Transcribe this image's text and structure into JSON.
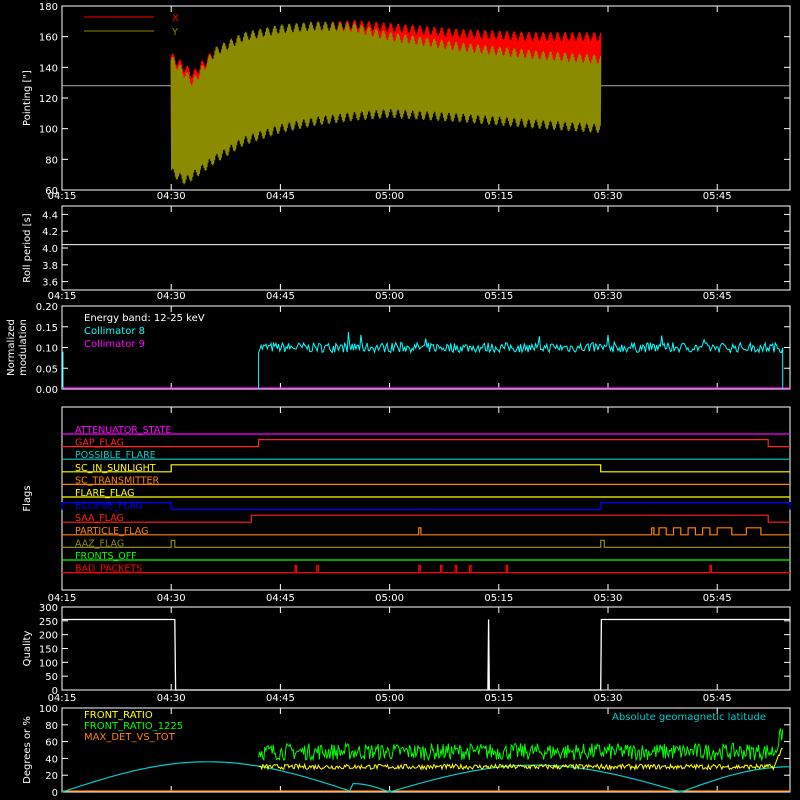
{
  "x_ticks": [
    "04:15",
    "04:30",
    "04:45",
    "05:00",
    "05:15",
    "05:30",
    "05:45"
  ],
  "chart_data": [
    {
      "type": "line",
      "panel": "pointing",
      "ylabel": "Pointing [\"]",
      "ylim": [
        60,
        180
      ],
      "yticks": [
        "60",
        "80",
        "100",
        "120",
        "140",
        "160",
        "180"
      ],
      "xlim": [
        "04:15",
        "05:55"
      ],
      "legend_position": "top-left",
      "reference_line": 128,
      "series": [
        {
          "name": "X",
          "color": "#ff0000",
          "x_start": "04:30",
          "x_end": "05:29",
          "upper_envelope": [
            [
              0,
              147
            ],
            [
              3,
              135
            ],
            [
              6,
              150
            ],
            [
              10,
              158
            ],
            [
              15,
              163
            ],
            [
              20,
              166
            ],
            [
              25,
              168
            ],
            [
              30,
              166
            ],
            [
              40,
              162
            ],
            [
              50,
              160
            ],
            [
              59,
              160
            ]
          ],
          "lower_envelope": [
            [
              0,
              85
            ],
            [
              3,
              78
            ],
            [
              6,
              98
            ],
            [
              10,
              108
            ],
            [
              15,
              116
            ],
            [
              20,
              120
            ],
            [
              25,
              124
            ],
            [
              30,
              130
            ],
            [
              40,
              132
            ],
            [
              50,
              135
            ],
            [
              59,
              138
            ]
          ]
        },
        {
          "name": "Y",
          "color": "#8b8b00",
          "x_start": "04:30",
          "x_end": "05:29",
          "upper_envelope": [
            [
              0,
              145
            ],
            [
              3,
              130
            ],
            [
              6,
              150
            ],
            [
              10,
              160
            ],
            [
              15,
              165
            ],
            [
              20,
              167
            ],
            [
              25,
              166
            ],
            [
              30,
              160
            ],
            [
              40,
              153
            ],
            [
              50,
              148
            ],
            [
              59,
              145
            ]
          ],
          "lower_envelope": [
            [
              0,
              72
            ],
            [
              2,
              66
            ],
            [
              6,
              80
            ],
            [
              10,
              92
            ],
            [
              15,
              100
            ],
            [
              20,
              105
            ],
            [
              25,
              108
            ],
            [
              30,
              110
            ],
            [
              40,
              107
            ],
            [
              50,
              103
            ],
            [
              59,
              100
            ]
          ]
        }
      ]
    },
    {
      "type": "line",
      "panel": "roll_period",
      "ylabel": "Roll period [s]",
      "ylim": [
        3.5,
        4.5
      ],
      "yticks": [
        "3.6",
        "3.8",
        "4.0",
        "4.2",
        "4.4"
      ],
      "series": [
        {
          "name": "",
          "color": "#ffffff",
          "constant": 4.04
        }
      ]
    },
    {
      "type": "line",
      "panel": "modulation",
      "ylabel": "Normalized modulation",
      "ylim": [
        0,
        0.2
      ],
      "yticks": [
        "0.00",
        "0.05",
        "0.10",
        "0.15",
        "0.20"
      ],
      "title": "Energy band: 12-25 keV",
      "series": [
        {
          "name": "Collimator 8",
          "color": "#00ffff",
          "x_start": "04:42",
          "x_end": "05:54",
          "mean": 0.1,
          "spread": 0.012
        },
        {
          "name": "Collimator 9",
          "color": "#ff00ff",
          "constant": 0.0
        }
      ]
    },
    {
      "type": "line",
      "panel": "flags",
      "ylabel": "Flags",
      "flags": [
        {
          "name": "ATTENUATOR_STATE",
          "color": "#ff00ff",
          "segments": []
        },
        {
          "name": "GAP_FLAG",
          "color": "#ff2020",
          "segments": [
            [
              "04:42",
              "05:52"
            ]
          ]
        },
        {
          "name": "POSSIBLE_FLARE",
          "color": "#00cccc",
          "segments": []
        },
        {
          "name": "SC_IN_SUNLIGHT",
          "color": "#ffff00",
          "segments": [
            [
              "04:30",
              "05:29"
            ]
          ]
        },
        {
          "name": "SC_TRANSMITTER",
          "color": "#ff8000",
          "segments": []
        },
        {
          "name": "FLARE_FLAG",
          "color": "#ffff00",
          "segments": []
        },
        {
          "name": "ECLIPSE_FLAG",
          "color": "#0000ff",
          "segments": [
            [
              "04:15",
              "04:30"
            ],
            [
              "05:29",
              "05:55"
            ]
          ]
        },
        {
          "name": "SAA_FLAG",
          "color": "#ff2020",
          "segments": [
            [
              "04:41",
              "05:52"
            ]
          ]
        },
        {
          "name": "PARTICLE_FLAG",
          "color": "#ff8000",
          "segments": [
            [
              "05:04",
              "05:04.3"
            ],
            [
              "05:36",
              "05:36.3"
            ],
            [
              "05:37",
              "05:38"
            ],
            [
              "05:39",
              "05:40"
            ],
            [
              "05:41",
              "05:42"
            ],
            [
              "05:43",
              "05:44"
            ],
            [
              "05:45",
              "05:47"
            ],
            [
              "05:49",
              "05:51"
            ]
          ]
        },
        {
          "name": "AAZ_FLAG",
          "color": "#8b8b00",
          "segments": [
            [
              "04:30",
              "04:30.5"
            ],
            [
              "05:29",
              "05:29.5"
            ]
          ]
        },
        {
          "name": "FRONTS_OFF",
          "color": "#00ff00",
          "segments": []
        },
        {
          "name": "BAD_PACKETS",
          "color": "#ff0000",
          "segments": [
            [
              "04:47",
              "04:47.2"
            ],
            [
              "04:50",
              "04:50.2"
            ],
            [
              "05:04",
              "05:04.2"
            ],
            [
              "05:07",
              "05:07.2"
            ],
            [
              "05:09",
              "05:09.2"
            ],
            [
              "05:11",
              "05:11.2"
            ],
            [
              "05:16",
              "05:16.2"
            ],
            [
              "05:44",
              "05:44.2"
            ]
          ]
        }
      ]
    },
    {
      "type": "line",
      "panel": "quality",
      "ylabel": "Quality",
      "ylim": [
        0,
        300
      ],
      "yticks": [
        "0",
        "50",
        "100",
        "150",
        "200",
        "250",
        "300"
      ],
      "series": [
        {
          "name": "",
          "color": "#ffffff",
          "points": [
            [
              "04:15",
              255
            ],
            [
              "04:30.5",
              255
            ],
            [
              "04:30.6",
              0
            ],
            [
              "05:13.5",
              0
            ],
            [
              "05:13.6",
              255
            ],
            [
              "05:13.7",
              0
            ],
            [
              "05:29",
              0
            ],
            [
              "05:29.1",
              255
            ],
            [
              "05:55",
              255
            ]
          ]
        }
      ]
    },
    {
      "type": "line",
      "panel": "ratios",
      "ylabel": "Degrees or %",
      "ylim": [
        0,
        100
      ],
      "yticks": [
        "0",
        "20",
        "40",
        "60",
        "80",
        "100"
      ],
      "series": [
        {
          "name": "FRONT_RATIO",
          "color": "#ffff00",
          "x_start": "04:42",
          "x_end": "05:54",
          "mean": 30,
          "spread": 3
        },
        {
          "name": "FRONT_RATIO_1225",
          "color": "#00ff00",
          "x_start": "04:42",
          "x_end": "05:54",
          "mean": 48,
          "spread": 10
        },
        {
          "name": "MAX_DET_VS_TOT",
          "color": "#ff8000",
          "constant": 0
        },
        {
          "name": "Absolute geomagnetic latitude",
          "color": "#00cccc",
          "points": [
            [
              "04:15",
              0
            ],
            [
              "04:35",
              36
            ],
            [
              "04:55",
              10
            ],
            [
              "05:00",
              0
            ],
            [
              "05:20",
              32
            ],
            [
              "05:40",
              0
            ],
            [
              "05:55",
              30
            ]
          ]
        }
      ]
    }
  ]
}
